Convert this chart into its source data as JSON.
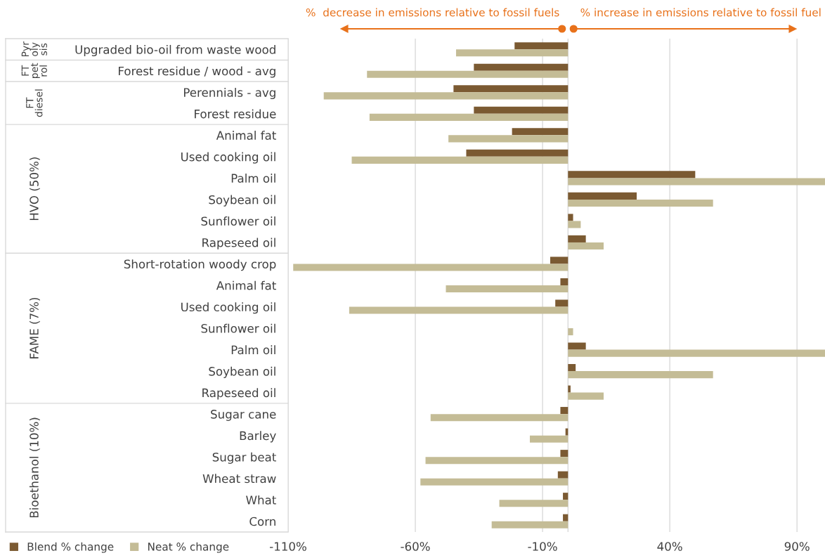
{
  "chart_data": {
    "type": "bar",
    "orientation": "horizontal",
    "categories": [
      "Upgraded bio-oil from waste wood",
      "Forest residue / wood - avg",
      "Perennials - avg",
      "Forest residue",
      "Animal fat",
      "Used cooking oil",
      "Palm oil",
      "Soybean oil",
      "Sunflower oil",
      "Rapeseed oil",
      "Short-rotation woody crop",
      "Animal fat",
      "Used cooking oil",
      "Sunflower oil",
      "Palm oil",
      "Soybean oil",
      "Rapeseed oil",
      "Sugar cane",
      "Barley",
      "Sugar beat",
      "Wheat straw",
      "What",
      "Corn"
    ],
    "series": [
      {
        "name": "Blend % change",
        "color": "#7b5a32",
        "values": [
          -21,
          -37,
          -45,
          -37,
          -22,
          -40,
          50,
          27,
          2,
          7,
          -7,
          -3,
          -5,
          0,
          7,
          3,
          1,
          -3,
          -1,
          -3,
          -4,
          -2,
          -2
        ]
      },
      {
        "name": "Neat % change",
        "color": "#c4bc96",
        "values": [
          -44,
          -79,
          -96,
          -78,
          -47,
          -85,
          101,
          57,
          5,
          14,
          -108,
          -48,
          -86,
          2,
          101,
          57,
          14,
          -54,
          -15,
          -56,
          -58,
          -27,
          -30
        ]
      }
    ],
    "xlim": [
      -110,
      101
    ],
    "xticks": [
      {
        "value": -110,
        "label": "-110%"
      },
      {
        "value": -60,
        "label": "-60%"
      },
      {
        "value": -10,
        "label": "-10%"
      },
      {
        "value": 40,
        "label": "40%"
      },
      {
        "value": 90,
        "label": "90%"
      }
    ],
    "grid": "x",
    "legend": "bottom left",
    "annotations": [
      "Pyr\noly\nsis",
      "FT\npet\nrol",
      "FT\ndiesel",
      "HVO (50%)",
      "FAME (7%)",
      "Bioethanol (10%)",
      "%  decrease in emissions relative to fossil fuels",
      "% increase in emissions relative to fossil fuel"
    ]
  }
}
